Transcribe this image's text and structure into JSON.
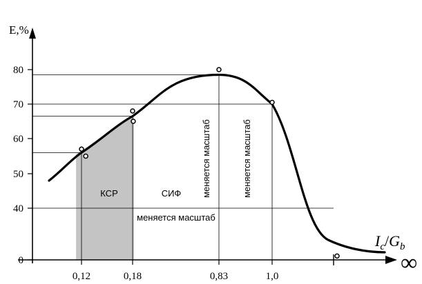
{
  "chart_data": {
    "type": "line",
    "y_axis_label": "E,%",
    "x_axis_label": {
      "var": "I",
      "var_sub": "c",
      "slash": "/",
      "den": "G",
      "den_sub": "b"
    },
    "infinity_label": "∞",
    "y_ticks": [
      {
        "value": 0,
        "label": "0"
      },
      {
        "value": 40,
        "label": "40"
      },
      {
        "value": 50,
        "label": "50"
      },
      {
        "value": 60,
        "label": "60"
      },
      {
        "value": 70,
        "label": "70"
      },
      {
        "value": 80,
        "label": "80"
      }
    ],
    "x_ticks": [
      {
        "value": 0.12,
        "label": "0,12"
      },
      {
        "value": 0.18,
        "label": "0,18"
      },
      {
        "value": 0.83,
        "label": "0,83"
      },
      {
        "value": 1.0,
        "label": "1,0"
      },
      {
        "value": "inf",
        "label": ""
      }
    ],
    "shaded_region": {
      "x_from": 0.11,
      "x_to": 0.19,
      "color": "#c4c4c4"
    },
    "region_labels": [
      {
        "text": "КСР",
        "orientation": "horizontal"
      },
      {
        "text": "СИФ",
        "orientation": "horizontal"
      },
      {
        "text": "меняется масштаб",
        "orientation": "horizontal"
      },
      {
        "text": "меняется масштаб",
        "orientation": "vertical"
      },
      {
        "text": "меняется масштаб",
        "orientation": "vertical"
      }
    ],
    "reference_lines": [
      {
        "type": "horizontal",
        "y": 40
      },
      {
        "type": "horizontal",
        "y": 56
      },
      {
        "type": "horizontal",
        "y": 66.5
      },
      {
        "type": "horizontal",
        "y": 70
      },
      {
        "type": "horizontal",
        "y": 78.5
      },
      {
        "type": "vertical",
        "x": 0.12
      },
      {
        "type": "vertical",
        "x": 0.18
      },
      {
        "type": "vertical",
        "x": 0.83
      },
      {
        "type": "vertical",
        "x": 1.0
      }
    ],
    "curve": [
      {
        "x": 0.06,
        "y": 48
      },
      {
        "x": 0.12,
        "y": 56
      },
      {
        "x": 0.18,
        "y": 66.5
      },
      {
        "x": 0.5,
        "y": 74
      },
      {
        "x": 0.83,
        "y": 78.5
      },
      {
        "x": 1.0,
        "y": 70
      },
      {
        "x": "inf",
        "y": 0
      }
    ],
    "points": [
      {
        "x": 0.12,
        "y": 57
      },
      {
        "x": 0.125,
        "y": 55
      },
      {
        "x": 0.18,
        "y": 68
      },
      {
        "x": 0.185,
        "y": 65
      },
      {
        "x": 0.83,
        "y": 80
      },
      {
        "x": 1.0,
        "y": 70.5
      },
      {
        "x": "inf",
        "y": 3
      }
    ],
    "grid": false,
    "legend": "none"
  }
}
